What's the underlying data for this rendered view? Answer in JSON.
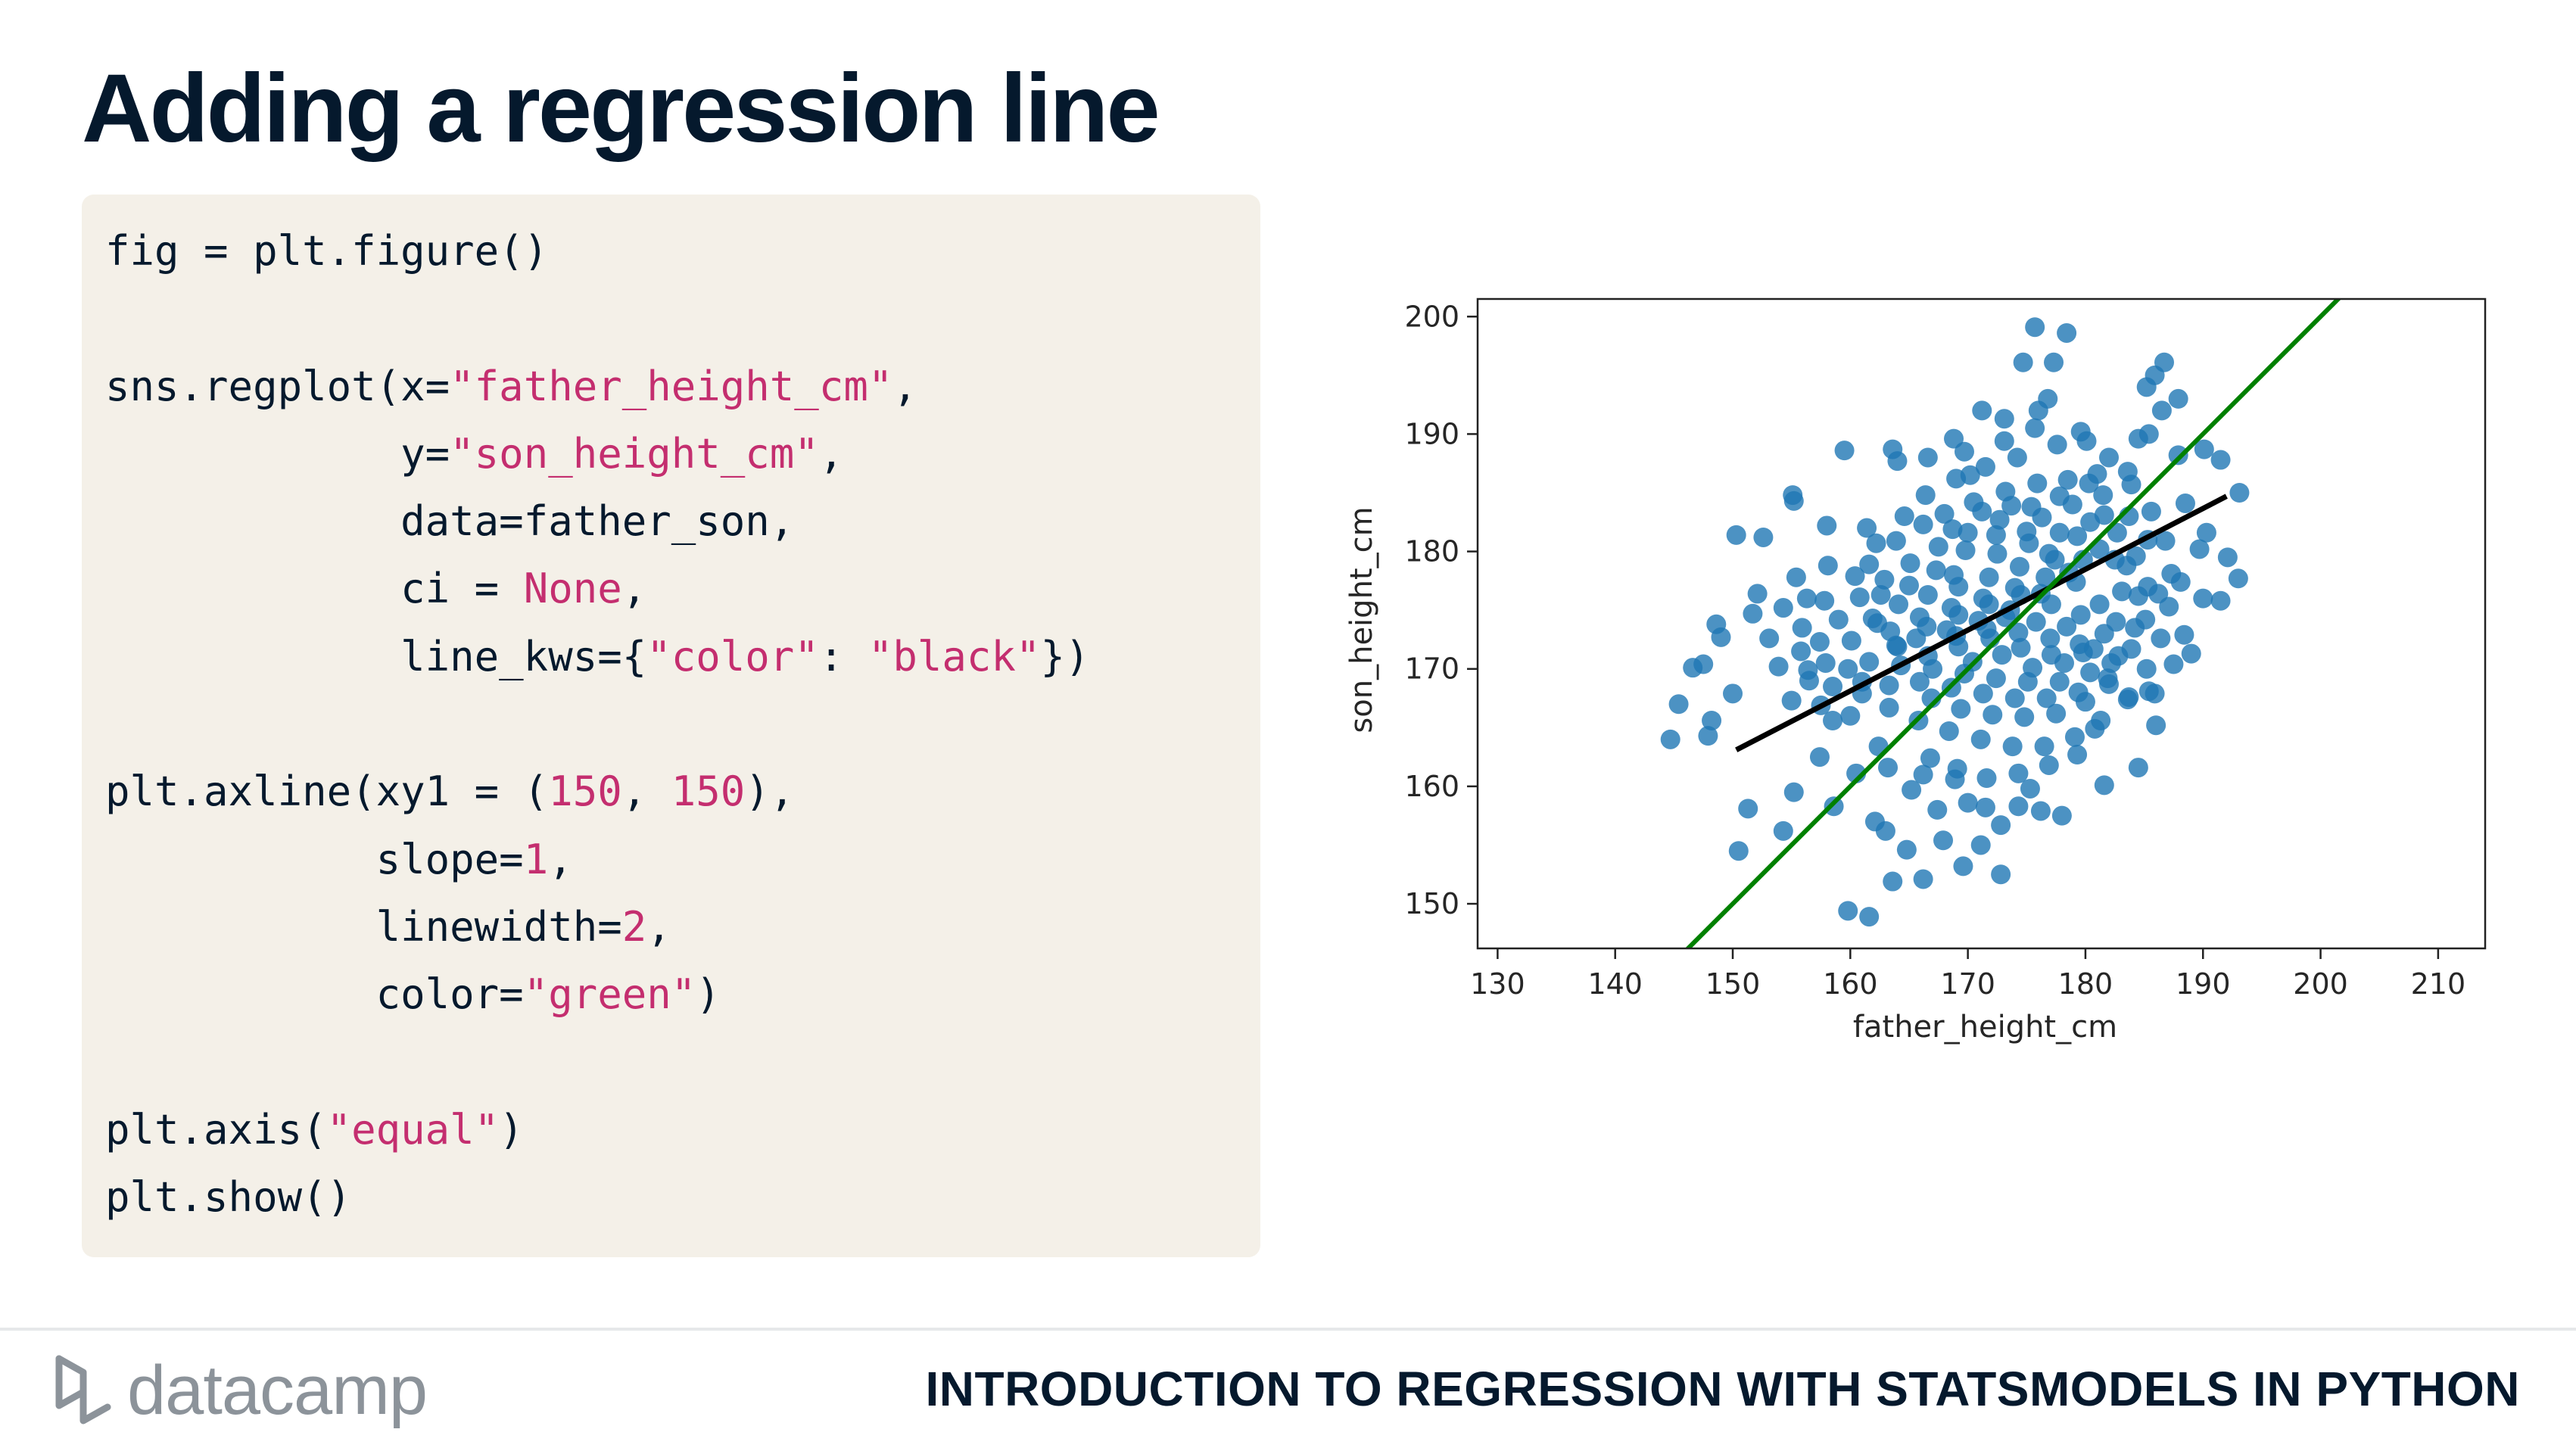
{
  "slide": {
    "title": "Adding a regression line",
    "course": "INTRODUCTION TO REGRESSION WITH STATSMODELS IN PYTHON",
    "logo_text": "datacamp"
  },
  "code": [
    [
      {
        "t": "fig = plt.figure()",
        "k": ""
      }
    ],
    [],
    [
      {
        "t": "sns.regplot(x=",
        "k": ""
      },
      {
        "t": "\"father_height_cm\"",
        "k": "str"
      },
      {
        "t": ",",
        "k": ""
      }
    ],
    [
      {
        "t": "            y=",
        "k": ""
      },
      {
        "t": "\"son_height_cm\"",
        "k": "str"
      },
      {
        "t": ",",
        "k": ""
      }
    ],
    [
      {
        "t": "            data=father_son,",
        "k": ""
      }
    ],
    [
      {
        "t": "            ci = ",
        "k": ""
      },
      {
        "t": "None",
        "k": "kw"
      },
      {
        "t": ",",
        "k": ""
      }
    ],
    [
      {
        "t": "            line_kws={",
        "k": ""
      },
      {
        "t": "\"color\"",
        "k": "str"
      },
      {
        "t": ": ",
        "k": ""
      },
      {
        "t": "\"black\"",
        "k": "str"
      },
      {
        "t": "})",
        "k": ""
      }
    ],
    [],
    [
      {
        "t": "plt.axline(xy1 = (",
        "k": ""
      },
      {
        "t": "150",
        "k": "num"
      },
      {
        "t": ", ",
        "k": ""
      },
      {
        "t": "150",
        "k": "num"
      },
      {
        "t": "),",
        "k": ""
      }
    ],
    [
      {
        "t": "           slope=",
        "k": ""
      },
      {
        "t": "1",
        "k": "num"
      },
      {
        "t": ",",
        "k": ""
      }
    ],
    [
      {
        "t": "           linewidth=",
        "k": ""
      },
      {
        "t": "2",
        "k": "num"
      },
      {
        "t": ",",
        "k": ""
      }
    ],
    [
      {
        "t": "           color=",
        "k": ""
      },
      {
        "t": "\"green\"",
        "k": "str"
      },
      {
        "t": ")",
        "k": ""
      }
    ],
    [],
    [
      {
        "t": "plt.axis(",
        "k": ""
      },
      {
        "t": "\"equal\"",
        "k": "str"
      },
      {
        "t": ")",
        "k": ""
      }
    ],
    [
      {
        "t": "plt.show()",
        "k": ""
      }
    ]
  ],
  "colors": {
    "title": "#05192d",
    "code_bg": "#f4f0e8",
    "code_highlight": "#c42e6f",
    "points": "#1f77b4",
    "regression_line": "#000000",
    "identity_line": "#008000"
  },
  "chart_data": {
    "type": "scatter",
    "title": "",
    "xlabel": "father_height_cm",
    "ylabel": "son_height_cm",
    "xlim": [
      128.3,
      214.0
    ],
    "ylim": [
      146.2,
      201.5
    ],
    "x_ticks": [
      130,
      140,
      150,
      160,
      170,
      180,
      190,
      200,
      210
    ],
    "y_ticks": [
      150,
      160,
      170,
      180,
      190,
      200
    ],
    "grid": false,
    "legend": "none",
    "points_note": "approx. 1078 father/son height pairs",
    "points": [
      [
        175.7,
        199.1
      ],
      [
        178.4,
        198.6
      ],
      [
        174.7,
        196.1
      ],
      [
        177.3,
        196.1
      ],
      [
        186.7,
        196.1
      ],
      [
        185.9,
        195.0
      ],
      [
        185.2,
        194.0
      ],
      [
        187.9,
        193.0
      ],
      [
        176.0,
        192.0
      ],
      [
        186.5,
        192.0
      ],
      [
        171.2,
        192.0
      ],
      [
        173.1,
        191.3
      ],
      [
        175.7,
        190.5
      ],
      [
        185.4,
        190.0
      ],
      [
        163.6,
        188.7
      ],
      [
        168.8,
        189.6
      ],
      [
        190.1,
        188.7
      ],
      [
        191.5,
        187.8
      ],
      [
        159.5,
        188.6
      ],
      [
        155.1,
        184.8
      ],
      [
        155.2,
        184.3
      ],
      [
        193.1,
        185.0
      ],
      [
        161.4,
        182.0
      ],
      [
        158.0,
        182.2
      ],
      [
        152.6,
        181.2
      ],
      [
        150.3,
        181.4
      ],
      [
        190.3,
        181.6
      ],
      [
        192.1,
        179.5
      ],
      [
        193.0,
        177.7
      ],
      [
        191.5,
        175.8
      ],
      [
        188.1,
        177.4
      ],
      [
        186.2,
        176.4
      ],
      [
        154.3,
        175.2
      ],
      [
        151.7,
        174.7
      ],
      [
        148.6,
        173.8
      ],
      [
        149.0,
        172.7
      ],
      [
        147.5,
        170.4
      ],
      [
        146.6,
        170.1
      ],
      [
        150.0,
        167.9
      ],
      [
        145.4,
        167.0
      ],
      [
        148.2,
        165.6
      ],
      [
        144.7,
        164.0
      ],
      [
        147.9,
        164.3
      ],
      [
        151.3,
        158.1
      ],
      [
        150.5,
        154.5
      ],
      [
        154.3,
        156.2
      ],
      [
        155.2,
        159.5
      ],
      [
        158.6,
        158.3
      ],
      [
        162.1,
        157.0
      ],
      [
        163.0,
        156.2
      ],
      [
        164.8,
        154.6
      ],
      [
        166.2,
        152.1
      ],
      [
        163.6,
        151.9
      ],
      [
        161.6,
        148.9
      ],
      [
        159.8,
        149.4
      ],
      [
        169.6,
        153.2
      ],
      [
        171.1,
        155.0
      ],
      [
        172.8,
        152.5
      ],
      [
        174.3,
        158.3
      ],
      [
        176.2,
        157.9
      ],
      [
        178.0,
        157.5
      ],
      [
        181.6,
        160.1
      ],
      [
        184.5,
        161.6
      ],
      [
        186.0,
        165.2
      ],
      [
        180.8,
        164.9
      ],
      [
        185.4,
        168.1
      ],
      [
        187.5,
        170.4
      ],
      [
        189.0,
        171.3
      ],
      [
        183.7,
        167.6
      ],
      [
        182.2,
        170.5
      ],
      [
        166.8,
        162.4
      ],
      [
        169.1,
        161.5
      ],
      [
        160.5,
        161.1
      ],
      [
        162.4,
        163.4
      ],
      [
        157.4,
        162.5
      ],
      [
        158.5,
        165.6
      ],
      [
        155.0,
        167.3
      ],
      [
        153.9,
        170.2
      ],
      [
        153.1,
        172.6
      ],
      [
        152.1,
        176.4
      ],
      [
        156.3,
        176.0
      ],
      [
        155.9,
        173.5
      ],
      [
        158.1,
        178.8
      ],
      [
        160.4,
        177.9
      ],
      [
        162.2,
        180.7
      ],
      [
        164.6,
        183.0
      ],
      [
        166.4,
        184.8
      ],
      [
        169.0,
        186.2
      ],
      [
        171.5,
        187.2
      ],
      [
        174.2,
        188.0
      ],
      [
        177.6,
        189.1
      ],
      [
        180.1,
        189.4
      ],
      [
        182.0,
        188.0
      ],
      [
        183.6,
        186.8
      ],
      [
        180.3,
        185.8
      ],
      [
        177.8,
        184.7
      ],
      [
        175.4,
        183.8
      ],
      [
        172.7,
        182.7
      ],
      [
        170.0,
        181.6
      ],
      [
        167.5,
        180.4
      ],
      [
        165.1,
        179.0
      ],
      [
        162.9,
        177.6
      ],
      [
        160.8,
        176.1
      ],
      [
        159.0,
        174.2
      ],
      [
        157.4,
        172.3
      ],
      [
        156.4,
        169.9
      ],
      [
        158.5,
        168.5
      ],
      [
        161.0,
        167.9
      ],
      [
        163.3,
        166.7
      ],
      [
        165.8,
        165.6
      ],
      [
        168.4,
        164.7
      ],
      [
        171.1,
        164.0
      ],
      [
        173.8,
        163.4
      ],
      [
        176.5,
        163.4
      ],
      [
        179.1,
        164.2
      ],
      [
        181.3,
        165.6
      ],
      [
        183.6,
        167.4
      ],
      [
        185.2,
        170.0
      ],
      [
        186.4,
        172.6
      ],
      [
        187.1,
        175.3
      ],
      [
        187.3,
        178.1
      ],
      [
        186.8,
        180.9
      ],
      [
        185.6,
        183.4
      ],
      [
        183.9,
        185.7
      ],
      [
        181.6,
        183.1
      ],
      [
        179.3,
        181.3
      ],
      [
        176.9,
        179.8
      ],
      [
        174.4,
        178.7
      ],
      [
        171.8,
        177.8
      ],
      [
        169.2,
        177.0
      ],
      [
        166.6,
        176.3
      ],
      [
        164.1,
        175.5
      ],
      [
        161.9,
        174.3
      ],
      [
        160.1,
        172.4
      ],
      [
        159.8,
        170.0
      ],
      [
        161.6,
        170.6
      ],
      [
        164.3,
        170.3
      ],
      [
        167.0,
        170.0
      ],
      [
        169.7,
        169.6
      ],
      [
        172.4,
        169.2
      ],
      [
        175.1,
        168.9
      ],
      [
        177.8,
        168.9
      ],
      [
        180.4,
        169.7
      ],
      [
        182.8,
        171.1
      ],
      [
        184.2,
        173.5
      ],
      [
        184.5,
        176.2
      ],
      [
        183.5,
        178.8
      ],
      [
        181.2,
        180.2
      ],
      [
        178.6,
        178.2
      ],
      [
        176.2,
        176.4
      ],
      [
        173.6,
        175.0
      ],
      [
        170.9,
        174.1
      ],
      [
        168.2,
        173.3
      ],
      [
        165.6,
        172.6
      ],
      [
        163.4,
        173.2
      ],
      [
        165.9,
        174.4
      ],
      [
        168.6,
        175.2
      ],
      [
        171.3,
        176.0
      ],
      [
        174.0,
        176.9
      ],
      [
        176.6,
        177.8
      ],
      [
        179.2,
        177.4
      ],
      [
        181.2,
        175.5
      ],
      [
        181.6,
        173.0
      ],
      [
        179.8,
        171.4
      ],
      [
        177.1,
        171.2
      ],
      [
        174.5,
        171.8
      ],
      [
        171.9,
        172.6
      ],
      [
        169.2,
        171.9
      ],
      [
        166.6,
        171.1
      ],
      [
        164.0,
        171.9
      ],
      [
        162.3,
        173.9
      ],
      [
        166.9,
        167.5
      ],
      [
        169.4,
        166.6
      ],
      [
        172.1,
        166.1
      ],
      [
        174.8,
        165.9
      ],
      [
        177.5,
        166.2
      ],
      [
        180.0,
        167.2
      ],
      [
        182.0,
        168.7
      ],
      [
        168.0,
        183.2
      ],
      [
        170.5,
        184.2
      ],
      [
        173.2,
        185.1
      ],
      [
        175.9,
        185.8
      ],
      [
        178.5,
        186.1
      ],
      [
        181.0,
        186.6
      ],
      [
        172.5,
        179.8
      ],
      [
        175.2,
        180.7
      ],
      [
        177.8,
        181.6
      ],
      [
        180.4,
        182.5
      ],
      [
        182.7,
        181.6
      ],
      [
        184.3,
        179.6
      ],
      [
        185.3,
        177.0
      ],
      [
        185.1,
        174.2
      ],
      [
        183.9,
        171.7
      ],
      [
        181.9,
        169.2
      ],
      [
        179.4,
        168.0
      ],
      [
        176.7,
        167.5
      ],
      [
        174.0,
        167.5
      ],
      [
        171.3,
        167.9
      ],
      [
        168.6,
        168.4
      ],
      [
        165.9,
        168.9
      ],
      [
        163.3,
        168.6
      ],
      [
        161.0,
        168.9
      ],
      [
        163.9,
        172.0
      ],
      [
        166.5,
        173.6
      ],
      [
        169.2,
        174.6
      ],
      [
        171.8,
        175.5
      ],
      [
        174.5,
        176.3
      ],
      [
        177.1,
        175.5
      ],
      [
        179.6,
        174.6
      ],
      [
        179.5,
        172.1
      ],
      [
        177.0,
        172.6
      ],
      [
        174.3,
        173.1
      ],
      [
        171.6,
        173.4
      ],
      [
        169.0,
        172.8
      ],
      [
        173.2,
        174.4
      ],
      [
        175.8,
        174.0
      ],
      [
        178.4,
        173.6
      ],
      [
        172.9,
        171.2
      ],
      [
        170.4,
        170.6
      ],
      [
        175.5,
        170.1
      ],
      [
        178.2,
        170.5
      ],
      [
        180.7,
        171.7
      ],
      [
        182.6,
        174.0
      ],
      [
        183.1,
        176.6
      ],
      [
        182.5,
        179.3
      ],
      [
        179.8,
        179.3
      ],
      [
        177.4,
        179.3
      ],
      [
        175.0,
        181.7
      ],
      [
        172.4,
        181.4
      ],
      [
        169.8,
        180.1
      ],
      [
        167.3,
        178.4
      ],
      [
        165.0,
        177.1
      ],
      [
        162.6,
        176.3
      ],
      [
        161.6,
        178.9
      ],
      [
        163.9,
        180.9
      ],
      [
        166.2,
        182.3
      ],
      [
        168.7,
        181.9
      ],
      [
        171.2,
        183.4
      ],
      [
        173.7,
        183.9
      ],
      [
        176.3,
        182.9
      ],
      [
        178.9,
        184.0
      ],
      [
        181.5,
        184.8
      ],
      [
        183.7,
        183.0
      ],
      [
        185.3,
        181.0
      ],
      [
        160.0,
        166.0
      ],
      [
        157.5,
        166.9
      ],
      [
        156.5,
        169.0
      ],
      [
        155.8,
        171.5
      ],
      [
        157.9,
        170.5
      ],
      [
        170.0,
        158.6
      ],
      [
        167.4,
        158.0
      ],
      [
        165.2,
        159.7
      ],
      [
        163.2,
        161.6
      ],
      [
        166.2,
        161.0
      ],
      [
        168.9,
        160.6
      ],
      [
        171.6,
        160.7
      ],
      [
        174.3,
        161.1
      ],
      [
        176.9,
        161.8
      ],
      [
        179.3,
        162.7
      ],
      [
        172.8,
        156.7
      ],
      [
        167.9,
        155.4
      ],
      [
        171.5,
        158.2
      ],
      [
        175.3,
        159.8
      ],
      [
        164.0,
        187.7
      ],
      [
        166.6,
        188.0
      ],
      [
        169.7,
        188.5
      ],
      [
        173.1,
        189.4
      ],
      [
        184.5,
        189.6
      ],
      [
        187.9,
        188.2
      ],
      [
        188.5,
        184.1
      ],
      [
        189.7,
        180.2
      ],
      [
        190.0,
        176.0
      ],
      [
        188.4,
        172.9
      ],
      [
        185.9,
        167.9
      ],
      [
        155.4,
        177.8
      ],
      [
        157.8,
        175.8
      ],
      [
        176.8,
        193.0
      ],
      [
        179.6,
        190.2
      ],
      [
        170.2,
        186.5
      ],
      [
        168.8,
        178.0
      ]
    ],
    "series": [
      {
        "name": "",
        "kind": "regression_line",
        "from": [
          150.3,
          163.1
        ],
        "to": [
          192.0,
          184.7
        ]
      },
      {
        "name": "",
        "kind": "axline",
        "xy1": [
          150,
          150
        ],
        "slope": 1
      }
    ]
  }
}
